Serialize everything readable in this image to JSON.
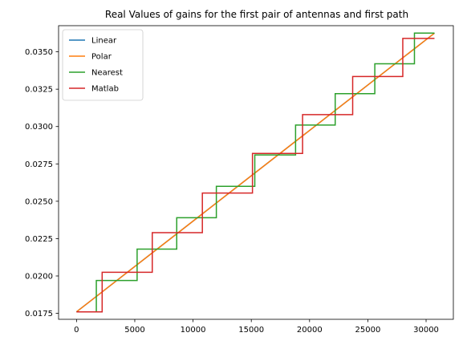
{
  "chart_data": {
    "type": "line",
    "title": "Real Values of gains for the first pair of antennas and first path",
    "xlabel": "",
    "ylabel": "",
    "xlim": [
      -1540,
      32340
    ],
    "ylim": [
      0.0171,
      0.03675
    ],
    "x_ticks": [
      0,
      5000,
      10000,
      15000,
      20000,
      25000,
      30000
    ],
    "x_tick_labels": [
      "0",
      "5000",
      "10000",
      "15000",
      "20000",
      "25000",
      "30000"
    ],
    "y_ticks": [
      0.0175,
      0.02,
      0.0225,
      0.025,
      0.0275,
      0.03,
      0.0325,
      0.035
    ],
    "y_tick_labels": [
      "0.0175",
      "0.0200",
      "0.0225",
      "0.0250",
      "0.0275",
      "0.0300",
      "0.0325",
      "0.0350"
    ],
    "grid": false,
    "legend_position": "top-left",
    "series": [
      {
        "name": "Linear",
        "color": "#1f77b4",
        "style": "line",
        "x": [
          0,
          30720
        ],
        "y": [
          0.0176,
          0.03625
        ]
      },
      {
        "name": "Polar",
        "color": "#ff7f0e",
        "style": "line",
        "x": [
          0,
          30720
        ],
        "y": [
          0.0176,
          0.03625
        ]
      },
      {
        "name": "Nearest",
        "color": "#2ca02c",
        "style": "step",
        "x": [
          0,
          1700,
          5200,
          8600,
          12000,
          15300,
          18800,
          22200,
          25600,
          29000,
          30720
        ],
        "y": [
          0.0176,
          0.0197,
          0.0218,
          0.0239,
          0.026,
          0.0281,
          0.0301,
          0.0322,
          0.0342,
          0.03625,
          0.03625
        ]
      },
      {
        "name": "Matlab",
        "color": "#d62728",
        "style": "step",
        "x": [
          0,
          2200,
          6500,
          10800,
          15100,
          19400,
          23700,
          28000,
          30720
        ],
        "y": [
          0.0176,
          0.02025,
          0.0229,
          0.02555,
          0.0282,
          0.0308,
          0.03335,
          0.0359,
          0.0359
        ]
      }
    ]
  }
}
